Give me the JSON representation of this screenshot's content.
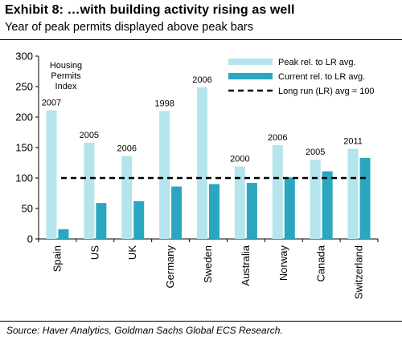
{
  "header": {
    "title": "Exhibit 8: …with building activity rising as well",
    "subtitle": "Year of peak permits displayed above peak bars"
  },
  "source": "Source: Haver Analytics, Goldman Sachs Global ECS Research.",
  "colors": {
    "peak": "#b4e4ec",
    "current": "#2aa6c1",
    "longrun": "#000000"
  },
  "chart_data": {
    "type": "bar",
    "index_label": [
      "Housing",
      "Permits",
      "Index"
    ],
    "categories": [
      "Spain",
      "US",
      "UK",
      "Germany",
      "Sweden",
      "Australia",
      "Norway",
      "Canada",
      "Switzerland"
    ],
    "peak_years": [
      "2007",
      "2005",
      "2006",
      "1998",
      "2006",
      "2000",
      "2006",
      "2005",
      "2011"
    ],
    "series": [
      {
        "name": "Peak rel. to LR avg.",
        "values": [
          211,
          158,
          136,
          210,
          249,
          119,
          154,
          130,
          148
        ]
      },
      {
        "name": "Current rel. to LR avg.",
        "values": [
          16,
          59,
          62,
          86,
          90,
          92,
          101,
          111,
          133
        ]
      }
    ],
    "reference_line": {
      "name": "Long run (LR) avg = 100",
      "value": 100
    },
    "ylim": [
      0,
      300
    ],
    "yticks": [
      "0",
      "50",
      "100",
      "150",
      "200",
      "250",
      "300"
    ],
    "legend_position": "top-right"
  }
}
